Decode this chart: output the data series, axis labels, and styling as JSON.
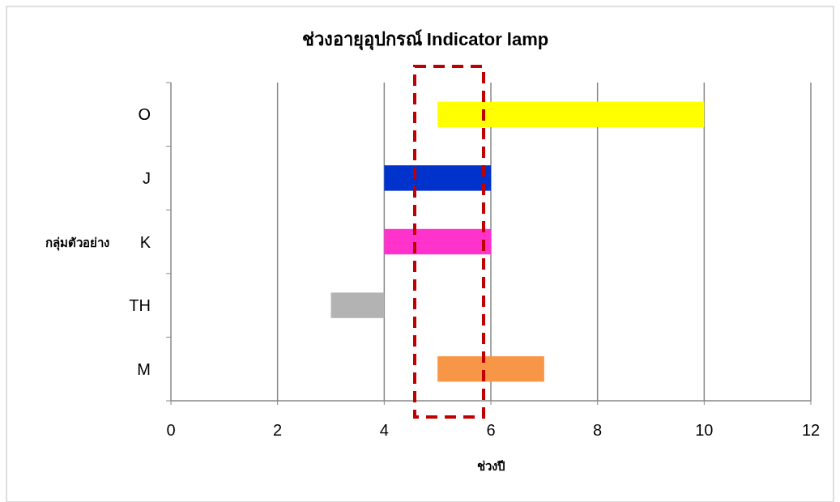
{
  "chart_data": {
    "type": "bar",
    "orientation": "horizontal",
    "title": "ช่วงอายุอุปกรณ์ Indicator lamp",
    "xlabel": "ช่วงปี",
    "ylabel": "กลุ่มตัวอย่าง",
    "categories": [
      "O",
      "J",
      "K",
      "TH",
      "M"
    ],
    "base": [
      5,
      4,
      4,
      3,
      5
    ],
    "values": [
      5,
      2,
      2,
      1,
      2
    ],
    "colors": [
      "#ffff00",
      "#0033cc",
      "#ff33cc",
      "#b3b3b3",
      "#f79646"
    ],
    "xlim": [
      0,
      12
    ],
    "xticks": [
      0,
      2,
      4,
      6,
      8,
      10,
      12
    ],
    "grid": "x"
  }
}
